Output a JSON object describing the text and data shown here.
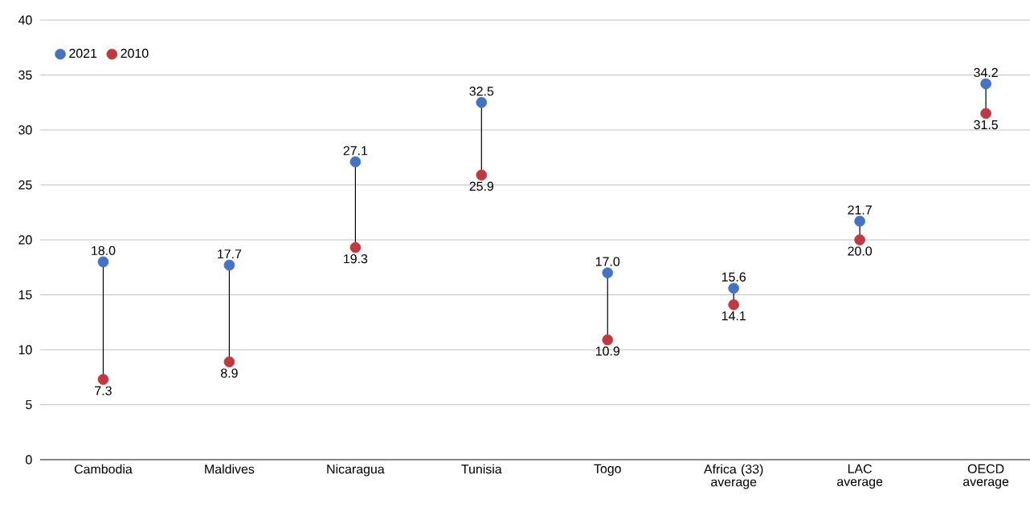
{
  "chart_data": {
    "type": "scatter",
    "categories": [
      "Cambodia",
      "Maldives",
      "Nicaragua",
      "Tunisia",
      "Togo",
      "Africa (33) average",
      "LAC average",
      "OECD average"
    ],
    "series": [
      {
        "name": "2021",
        "color": "#4472c4",
        "values": [
          18.0,
          17.7,
          27.1,
          32.5,
          17.0,
          15.6,
          21.7,
          34.2
        ],
        "value_labels": [
          "18.0",
          "17.7",
          "27.1",
          "32.5",
          "17.0",
          "15.6",
          "21.7",
          "34.2"
        ]
      },
      {
        "name": "2010",
        "color": "#c0393f",
        "values": [
          7.3,
          8.9,
          19.3,
          25.9,
          10.9,
          14.1,
          20.0,
          31.5
        ],
        "value_labels": [
          "7.3",
          "8.9",
          "19.3",
          "25.9",
          "10.9",
          "14.1",
          "20.0",
          "31.5"
        ]
      }
    ],
    "ylim": [
      0,
      40
    ],
    "yticks": [
      0,
      5,
      10,
      15,
      20,
      25,
      30,
      35,
      40
    ],
    "grid": "y",
    "legend": "top left"
  }
}
